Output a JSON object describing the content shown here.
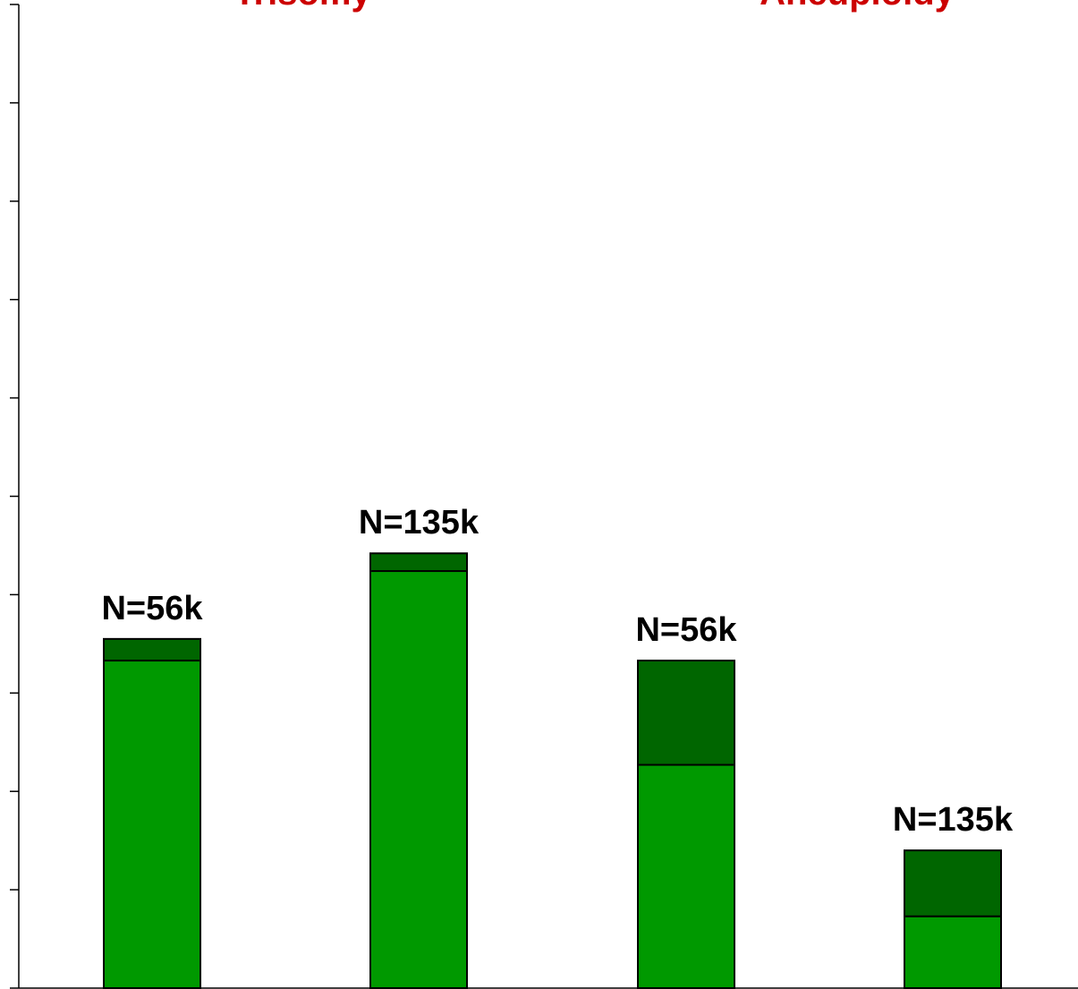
{
  "chart_data": {
    "type": "bar",
    "stacked": true,
    "group_titles": [
      "Trisomy",
      "Aneuploidy"
    ],
    "categories": [
      "",
      "",
      "",
      ""
    ],
    "bar_labels": [
      "N=56k",
      "N=135k",
      "N=56k",
      "N=135k"
    ],
    "series": [
      {
        "values": [
          3.33,
          4.24,
          2.27,
          0.73
        ]
      },
      {
        "values": [
          0.22,
          0.18,
          1.06,
          0.67
        ]
      }
    ],
    "ylim": [
      0,
      10
    ],
    "y_ticks": [
      0,
      1,
      2,
      3,
      4,
      5,
      6,
      7,
      8,
      9,
      10
    ],
    "grid": false,
    "colors": {
      "series_bottom": "#009900",
      "series_top": "#006600",
      "title": "#cc0000",
      "outline": "#000000"
    }
  }
}
